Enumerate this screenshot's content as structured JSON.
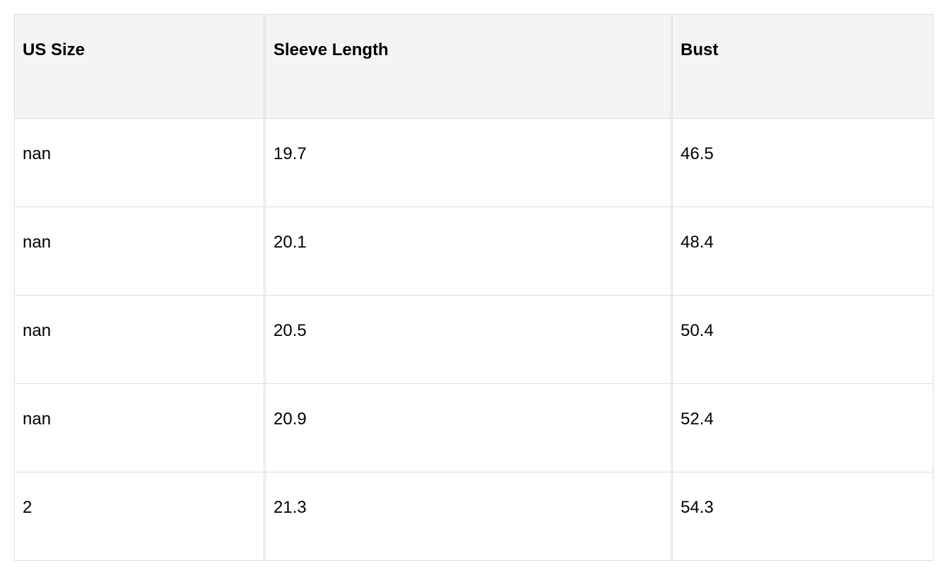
{
  "table": {
    "headers": [
      "US Size",
      "Sleeve Length",
      "Bust"
    ],
    "rows": [
      [
        "nan",
        "19.7",
        "46.5"
      ],
      [
        "nan",
        "20.1",
        "48.4"
      ],
      [
        "nan",
        "20.5",
        "50.4"
      ],
      [
        "nan",
        "20.9",
        "52.4"
      ],
      [
        "2",
        "21.3",
        "54.3"
      ]
    ]
  }
}
